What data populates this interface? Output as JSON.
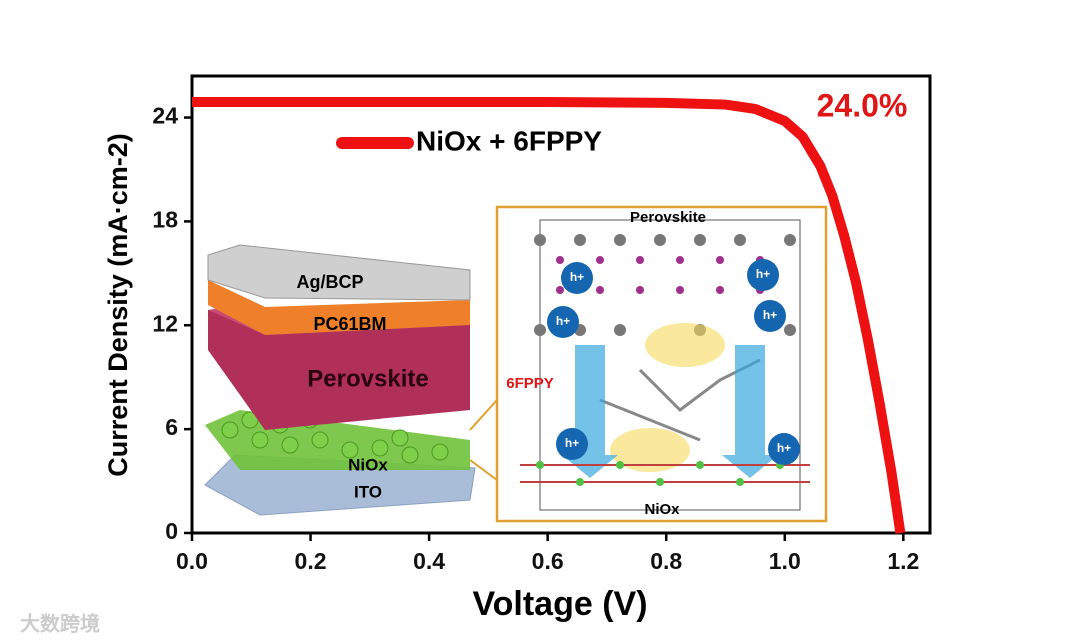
{
  "chart_data": {
    "type": "line",
    "x_label": "Voltage (V)",
    "y_label": "Current Density (mA·cm-2)",
    "annotation": "24.0%",
    "xlim": [
      0,
      1.245
    ],
    "ylim": [
      0,
      26.4
    ],
    "xticks": [
      {
        "value": 0,
        "label": "0.0"
      },
      0.2,
      0.4,
      0.6,
      0.8,
      {
        "value": 1,
        "label": "1.0"
      },
      1.2
    ],
    "yticks": [
      0,
      6,
      12,
      18,
      24
    ],
    "x": [
      0,
      0.2,
      0.4,
      0.6,
      0.8,
      0.9,
      0.95,
      1.0,
      1.03,
      1.06,
      1.08,
      1.1,
      1.12,
      1.14,
      1.16,
      1.18,
      1.195
    ],
    "series": [
      {
        "name": "NiOx + 6FPPY",
        "color": "#ee1111",
        "values": [
          24.9,
          24.9,
          24.9,
          24.9,
          24.85,
          24.75,
          24.5,
          23.8,
          22.9,
          21.2,
          19.5,
          17.2,
          14.5,
          11.2,
          7.5,
          3.5,
          0
        ]
      }
    ]
  },
  "stack": {
    "layers": [
      "Ag/BCP",
      "PC61BM",
      "Perovskite",
      "NiOx",
      "ITO"
    ]
  },
  "interface": {
    "top": "Perovskite",
    "molecule": "6FPPY",
    "bottom": "NiOx",
    "hole": "h+"
  },
  "watermark": "大数跨境"
}
